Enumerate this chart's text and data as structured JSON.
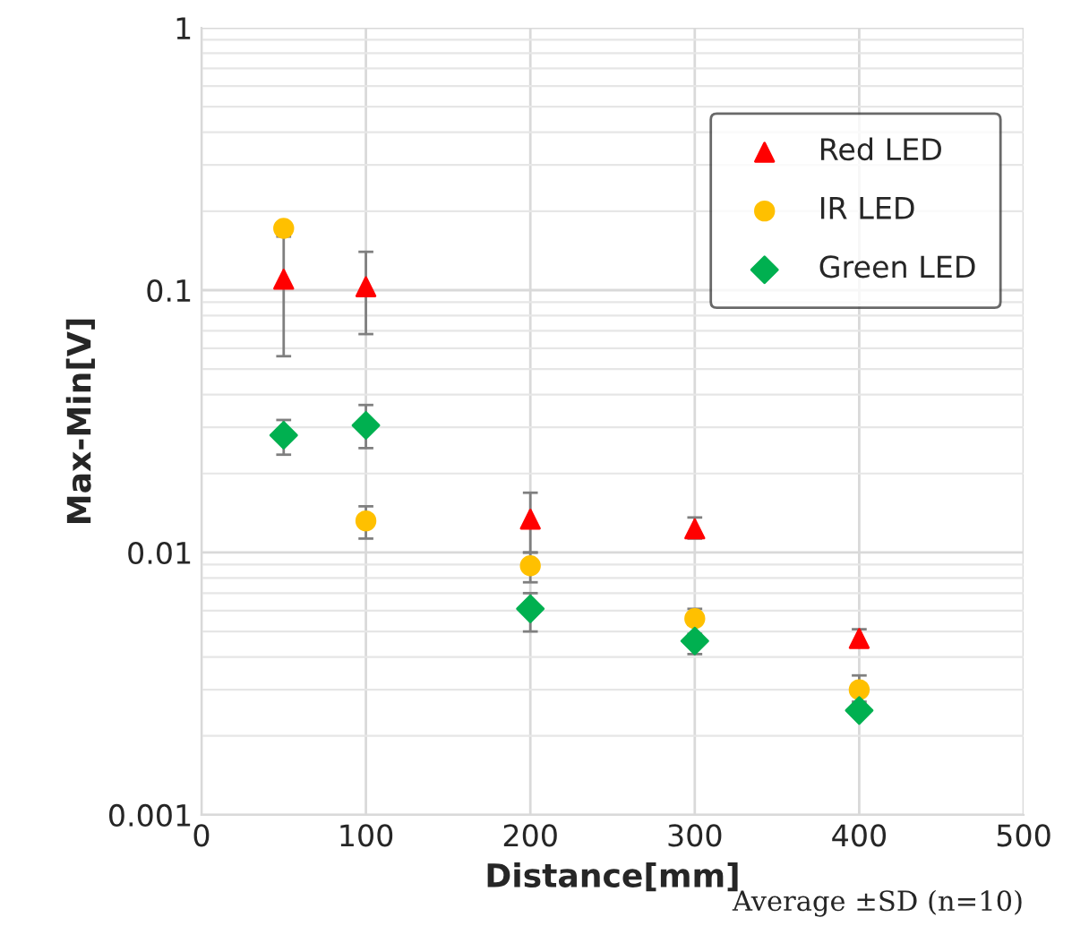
{
  "chart_data": {
    "type": "scatter",
    "xlabel": "Distance[mm]",
    "ylabel": "Max-Min[V]",
    "x": [
      50,
      100,
      200,
      300,
      400
    ],
    "series": [
      {
        "name": "Red LED",
        "color": "#ff0000",
        "marker": "triangle",
        "values": [
          0.11,
          0.103,
          0.0134,
          0.0123,
          0.0047
        ],
        "errors": [
          [
            0.056,
            0.16
          ],
          [
            0.068,
            0.14
          ],
          [
            0.01,
            0.0169
          ],
          [
            0.0113,
            0.0136
          ],
          [
            0.0044,
            0.0051
          ]
        ]
      },
      {
        "name": "IR LED",
        "color": "#ffc000",
        "marker": "circle",
        "values": [
          0.172,
          0.0132,
          0.0089,
          0.0056,
          0.003
        ],
        "errors": [
          null,
          [
            0.0113,
            0.015
          ],
          [
            0.0077,
            0.01
          ],
          [
            0.0053,
            0.0061
          ],
          [
            0.0027,
            0.0034
          ]
        ]
      },
      {
        "name": "Green LED",
        "color": "#00b050",
        "marker": "diamond",
        "values": [
          0.028,
          0.0305,
          0.0061,
          0.0046,
          0.0025
        ],
        "errors": [
          [
            0.0236,
            0.032
          ],
          [
            0.025,
            0.0365
          ],
          [
            0.005,
            0.007
          ],
          [
            0.0041,
            0.0049
          ],
          null
        ]
      }
    ],
    "log": "y",
    "xlim": [
      0,
      500
    ],
    "xticks": [
      0,
      100,
      200,
      300,
      400,
      500
    ],
    "ylim": [
      0.001,
      1
    ],
    "yticks": [
      0.001,
      0.01,
      0.1,
      1
    ],
    "grid": true,
    "legend": "top right",
    "annotations": [
      "Average ±SD (n=10)"
    ]
  }
}
